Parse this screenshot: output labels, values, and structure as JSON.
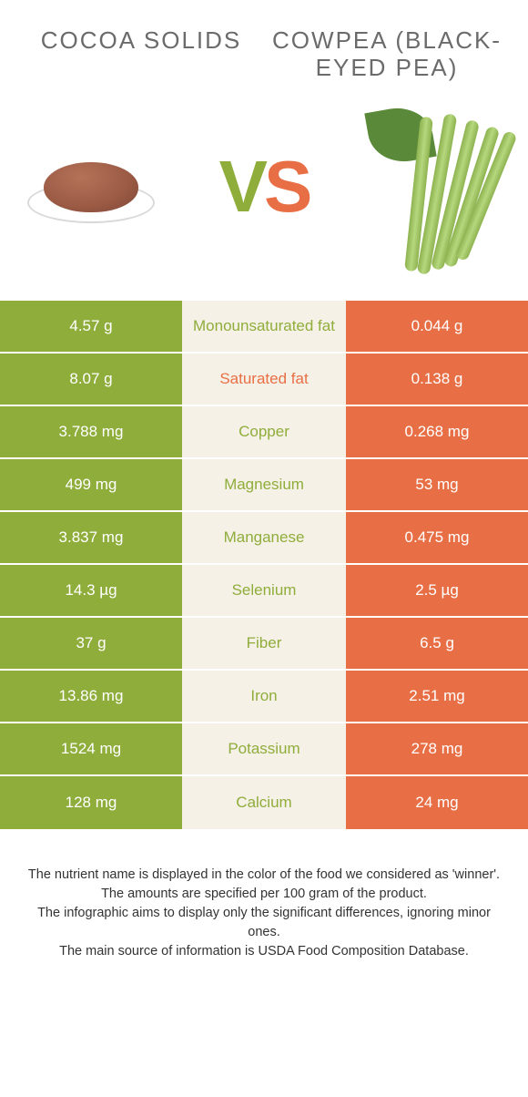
{
  "header": {
    "left": "COCOA SOLIDS",
    "right": "COWPEA (BLACK-EYED PEA)"
  },
  "vs": {
    "v": "V",
    "s": "S"
  },
  "colors": {
    "left": "#8fad3b",
    "right": "#e86f45",
    "mid_bg": "#f6f1e6",
    "label_left_win": "#8fad3b",
    "label_right_win": "#e86f45"
  },
  "rows": [
    {
      "left": "4.57 g",
      "label": "Monounsaturated fat",
      "right": "0.044 g",
      "winner": "left"
    },
    {
      "left": "8.07 g",
      "label": "Saturated fat",
      "right": "0.138 g",
      "winner": "right"
    },
    {
      "left": "3.788 mg",
      "label": "Copper",
      "right": "0.268 mg",
      "winner": "left"
    },
    {
      "left": "499 mg",
      "label": "Magnesium",
      "right": "53 mg",
      "winner": "left"
    },
    {
      "left": "3.837 mg",
      "label": "Manganese",
      "right": "0.475 mg",
      "winner": "left"
    },
    {
      "left": "14.3 µg",
      "label": "Selenium",
      "right": "2.5 µg",
      "winner": "left"
    },
    {
      "left": "37 g",
      "label": "Fiber",
      "right": "6.5 g",
      "winner": "left"
    },
    {
      "left": "13.86 mg",
      "label": "Iron",
      "right": "2.51 mg",
      "winner": "left"
    },
    {
      "left": "1524 mg",
      "label": "Potassium",
      "right": "278 mg",
      "winner": "left"
    },
    {
      "left": "128 mg",
      "label": "Calcium",
      "right": "24 mg",
      "winner": "left"
    }
  ],
  "footer": {
    "l1": "The nutrient name is displayed in the color of the food we considered as 'winner'.",
    "l2": "The amounts are specified per 100 gram of the product.",
    "l3": "The infographic aims to display only the significant differences, ignoring minor ones.",
    "l4": "The main source of information is USDA Food Composition Database."
  }
}
